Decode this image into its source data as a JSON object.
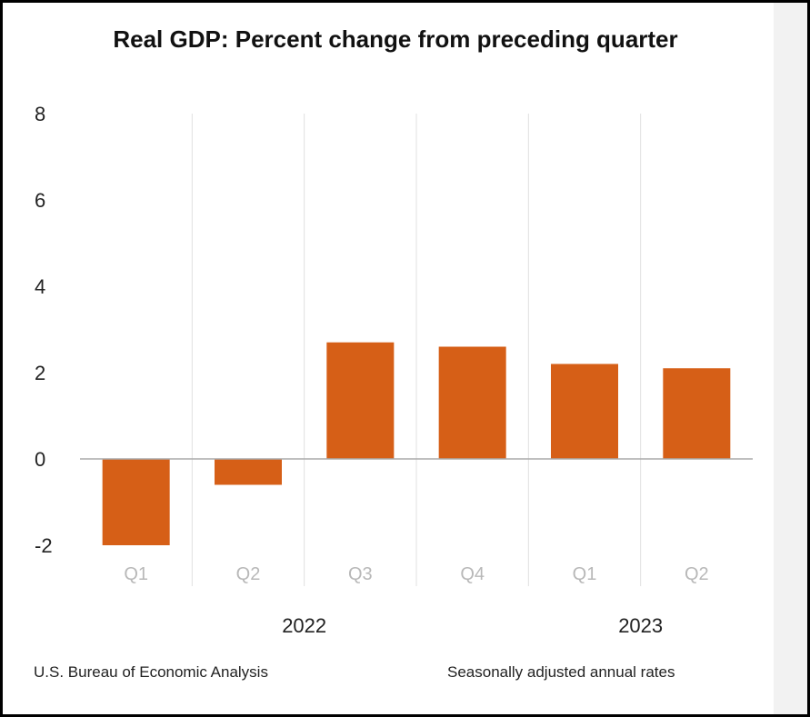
{
  "chart_data": {
    "type": "bar",
    "title": "Real GDP:  Percent change from preceding quarter",
    "categories": [
      "Q1",
      "Q2",
      "Q3",
      "Q4",
      "Q1",
      "Q2"
    ],
    "year_groups": [
      {
        "label": "2022",
        "categories": [
          "Q1",
          "Q2",
          "Q3",
          "Q4"
        ]
      },
      {
        "label": "2023",
        "categories": [
          "Q1",
          "Q2"
        ]
      }
    ],
    "values": [
      -2.0,
      -0.6,
      2.7,
      2.6,
      2.2,
      2.1
    ],
    "yticks": [
      "8",
      "6",
      "4",
      "2",
      "0",
      "-2"
    ],
    "ylim": [
      -2,
      8
    ],
    "xlabel": "",
    "ylabel": "",
    "grid": "vertical",
    "source": "U.S. Bureau of Economic Analysis",
    "note": "Seasonally adjusted annual rates",
    "colors": {
      "bar": "#d65f17",
      "grid": "#e0e0e0",
      "axis": "#aaaaaa",
      "xtick_text": "#b8b8b8"
    }
  }
}
